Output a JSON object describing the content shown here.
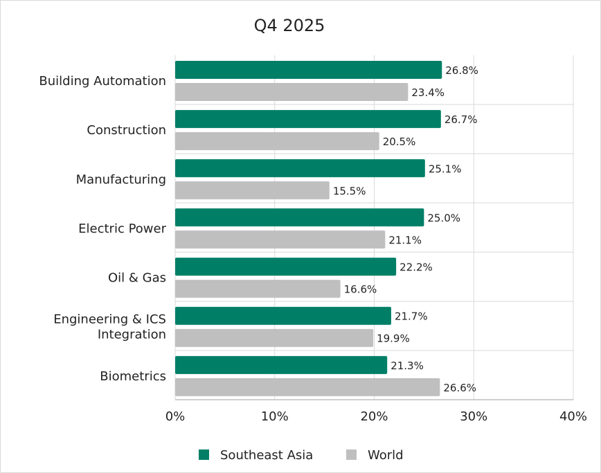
{
  "chart_data": {
    "type": "bar",
    "orientation": "horizontal",
    "title": "Q4 2025",
    "categories": [
      "Building Automation",
      "Construction",
      "Manufacturing",
      "Electric Power",
      "Oil & Gas",
      "Engineering & ICS Integration",
      "Biometrics"
    ],
    "category_lines": [
      [
        "Building Automation"
      ],
      [
        "Construction"
      ],
      [
        "Manufacturing"
      ],
      [
        "Electric Power"
      ],
      [
        "Oil & Gas"
      ],
      [
        "Engineering & ICS",
        "Integration"
      ],
      [
        "Biometrics"
      ]
    ],
    "series": [
      {
        "name": "Southeast Asia",
        "color": "#007f66",
        "values": [
          26.8,
          26.7,
          25.1,
          25.0,
          22.2,
          21.7,
          21.3
        ],
        "labels": [
          "26.8%",
          "26.7%",
          "25.1%",
          "25.0%",
          "22.2%",
          "21.7%",
          "21.3%"
        ]
      },
      {
        "name": "World",
        "color": "#bfbfbf",
        "values": [
          23.4,
          20.5,
          15.5,
          21.1,
          16.6,
          19.9,
          26.6
        ],
        "labels": [
          "23.4%",
          "20.5%",
          "15.5%",
          "21.1%",
          "16.6%",
          "19.9%",
          "26.6%"
        ]
      }
    ],
    "xlim": [
      0,
      40
    ],
    "xticks": [
      0,
      10,
      20,
      30,
      40
    ],
    "xtick_labels": [
      "0%",
      "10%",
      "20%",
      "30%",
      "40%"
    ],
    "grid": true,
    "legend_position": "bottom"
  }
}
